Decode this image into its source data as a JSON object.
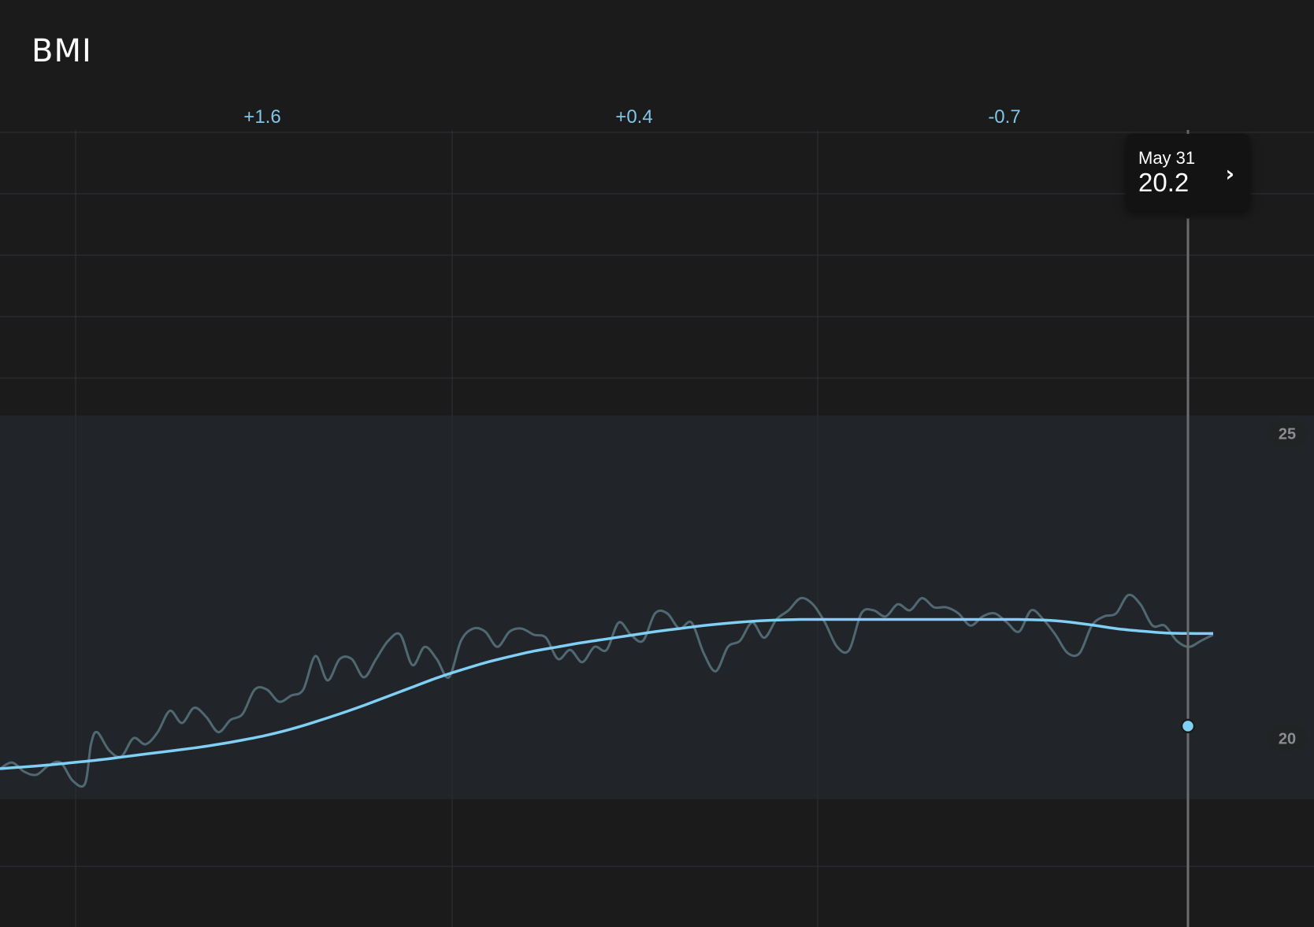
{
  "title": "BMI",
  "colors": {
    "background": "#1b1b1c",
    "band": "#21252a",
    "grid": "#2a2b2e",
    "accent": "#80cff5",
    "raw_line": "#4f6872",
    "delta_text": "#80c6e8",
    "badge_bg": "#222325",
    "badge_text": "#8a8d90"
  },
  "tooltip": {
    "date": "May 31",
    "value": "20.2",
    "icon": "chevron-right-icon"
  },
  "chart_data": {
    "type": "line",
    "title": "BMI",
    "ylim": [
      16.9,
      29.95
    ],
    "y_ticks": [
      {
        "value": 25,
        "label": "25"
      },
      {
        "value": 20,
        "label": "20"
      }
    ],
    "normal_range": [
      19,
      25.3
    ],
    "period_deltas": [
      "+1.6",
      "+0.4",
      "-0.7"
    ],
    "selected": {
      "date": "May 31",
      "value": 20.2
    },
    "series": [
      {
        "key": "trend",
        "x": [
          0,
          0.02,
          0.04,
          0.06,
          0.08,
          0.1,
          0.12,
          0.14,
          0.16,
          0.18,
          0.2,
          0.22,
          0.24,
          0.26,
          0.28,
          0.3,
          0.32,
          0.34,
          0.36,
          0.38,
          0.4,
          0.42,
          0.44,
          0.46,
          0.48,
          0.5,
          0.52,
          0.54,
          0.56,
          0.58,
          0.6,
          0.62,
          0.64,
          0.66,
          0.68,
          0.7,
          0.72,
          0.74,
          0.76,
          0.78,
          0.8,
          0.82,
          0.84,
          0.86,
          0.88,
          0.9,
          0.92,
          0.94,
          0.96,
          0.98,
          1.0
        ],
        "values": [
          19.5,
          19.53,
          19.56,
          19.6,
          19.64,
          19.69,
          19.74,
          19.79,
          19.84,
          19.9,
          19.97,
          20.05,
          20.15,
          20.27,
          20.4,
          20.54,
          20.69,
          20.84,
          20.99,
          21.12,
          21.24,
          21.34,
          21.43,
          21.5,
          21.57,
          21.63,
          21.69,
          21.75,
          21.8,
          21.85,
          21.89,
          21.92,
          21.94,
          21.95,
          21.95,
          21.95,
          21.95,
          21.95,
          21.95,
          21.95,
          21.95,
          21.95,
          21.95,
          21.94,
          21.91,
          21.86,
          21.8,
          21.76,
          21.73,
          21.72,
          21.72
        ]
      },
      {
        "key": "raw",
        "x": [
          0,
          0.01,
          0.02,
          0.03,
          0.04,
          0.05,
          0.06,
          0.07,
          0.075,
          0.08,
          0.09,
          0.1,
          0.11,
          0.12,
          0.13,
          0.14,
          0.15,
          0.16,
          0.17,
          0.18,
          0.19,
          0.2,
          0.21,
          0.22,
          0.23,
          0.24,
          0.25,
          0.26,
          0.27,
          0.28,
          0.29,
          0.3,
          0.31,
          0.32,
          0.33,
          0.34,
          0.35,
          0.36,
          0.37,
          0.38,
          0.39,
          0.4,
          0.41,
          0.42,
          0.43,
          0.44,
          0.45,
          0.46,
          0.47,
          0.48,
          0.49,
          0.5,
          0.51,
          0.52,
          0.53,
          0.54,
          0.55,
          0.56,
          0.57,
          0.58,
          0.59,
          0.6,
          0.61,
          0.62,
          0.63,
          0.64,
          0.65,
          0.66,
          0.67,
          0.68,
          0.69,
          0.7,
          0.71,
          0.72,
          0.73,
          0.74,
          0.75,
          0.76,
          0.77,
          0.78,
          0.79,
          0.8,
          0.81,
          0.82,
          0.83,
          0.84,
          0.85,
          0.86,
          0.87,
          0.88,
          0.89,
          0.9,
          0.91,
          0.92,
          0.93,
          0.94,
          0.95,
          0.96,
          0.97,
          0.98,
          0.99,
          1.0
        ],
        "values": [
          19.5,
          19.6,
          19.45,
          19.4,
          19.55,
          19.6,
          19.3,
          19.25,
          19.9,
          20.1,
          19.8,
          19.7,
          20.0,
          19.9,
          20.1,
          20.45,
          20.25,
          20.5,
          20.35,
          20.1,
          20.3,
          20.4,
          20.8,
          20.8,
          20.6,
          20.7,
          20.8,
          21.35,
          20.95,
          21.3,
          21.3,
          21.0,
          21.3,
          21.6,
          21.7,
          21.2,
          21.5,
          21.3,
          21.0,
          21.6,
          21.8,
          21.75,
          21.5,
          21.75,
          21.8,
          21.7,
          21.65,
          21.3,
          21.45,
          21.25,
          21.5,
          21.45,
          21.9,
          21.7,
          21.6,
          22.05,
          22.05,
          21.8,
          21.9,
          21.4,
          21.1,
          21.5,
          21.6,
          21.9,
          21.65,
          21.95,
          22.1,
          22.3,
          22.2,
          21.9,
          21.5,
          21.45,
          22.05,
          22.1,
          22.0,
          22.2,
          22.1,
          22.3,
          22.15,
          22.15,
          22.05,
          21.85,
          22.0,
          22.05,
          21.9,
          21.75,
          22.1,
          21.95,
          21.7,
          21.4,
          21.4,
          21.85,
          22.0,
          22.05,
          22.35,
          22.2,
          21.85,
          21.85,
          21.6,
          21.5,
          21.6,
          21.7
        ]
      }
    ]
  }
}
